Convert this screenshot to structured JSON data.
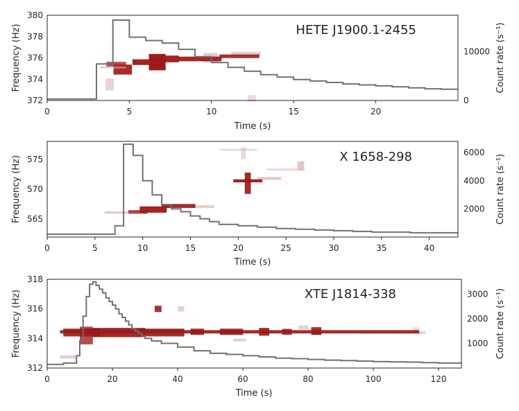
{
  "colors": {
    "power": "#a31a1a",
    "power_faint": "#dcb4b4",
    "lightcurve": "#707070",
    "frame": "#222222"
  },
  "chart_data": [
    {
      "type": "heatmap",
      "title": "HETE J1900.1-2455",
      "xlabel": "Time (s)",
      "ylabel": "Frequency (Hz)",
      "y2label": "Count rate (s⁻¹)",
      "xlim": [
        0,
        25
      ],
      "ylim": [
        372,
        380
      ],
      "y2lim": [
        0,
        17500
      ],
      "xticks": [
        "0",
        "5",
        "10",
        "15",
        "20"
      ],
      "xtick_values": [
        0,
        5,
        10,
        15,
        20
      ],
      "yticks": [
        "372",
        "374",
        "376",
        "378",
        "380"
      ],
      "ytick_values": [
        372,
        374,
        376,
        378,
        380
      ],
      "y2ticks": [
        "0",
        "10000"
      ],
      "y2tick_values": [
        0,
        10000
      ],
      "lightcurve": {
        "t": [
          0,
          3,
          4,
          5,
          6,
          7,
          8,
          9,
          10,
          11,
          12,
          13,
          14,
          15,
          16,
          17,
          18,
          19,
          20,
          21,
          22,
          23,
          24
        ],
        "rate": [
          300,
          7500,
          16500,
          13000,
          12300,
          11800,
          10500,
          9000,
          7800,
          6800,
          6000,
          5300,
          4800,
          4300,
          4000,
          3700,
          3400,
          3200,
          3000,
          2800,
          2600,
          2400,
          2300
        ]
      },
      "power_cells": [
        {
          "t": 3.2,
          "f": 375.1,
          "dt": 1.6,
          "df": 0.2,
          "power": 0.15
        },
        {
          "t": 3.6,
          "f": 375.4,
          "dt": 1.2,
          "df": 0.45,
          "power": 0.5
        },
        {
          "t": 4.05,
          "f": 374.9,
          "dt": 1.1,
          "df": 0.9,
          "power": 0.85
        },
        {
          "t": 3.55,
          "f": 373.5,
          "dt": 0.5,
          "df": 1.1,
          "power": 0.2
        },
        {
          "t": 5.2,
          "f": 375.6,
          "dt": 1.8,
          "df": 0.5,
          "power": 0.9
        },
        {
          "t": 6.2,
          "f": 375.6,
          "dt": 1.0,
          "df": 1.5,
          "power": 1.0
        },
        {
          "t": 7.0,
          "f": 375.9,
          "dt": 1.0,
          "df": 0.6,
          "power": 0.9
        },
        {
          "t": 8.0,
          "f": 375.9,
          "dt": 2.6,
          "df": 0.4,
          "power": 0.85
        },
        {
          "t": 10.5,
          "f": 376.15,
          "dt": 2.4,
          "df": 0.3,
          "power": 0.8
        },
        {
          "t": 9.5,
          "f": 376.0,
          "dt": 0.9,
          "df": 0.9,
          "power": 0.3
        },
        {
          "t": 11.2,
          "f": 376.4,
          "dt": 1.8,
          "df": 0.35,
          "power": 0.25
        },
        {
          "t": 12.2,
          "f": 372.2,
          "dt": 0.5,
          "df": 0.6,
          "power": 0.15
        }
      ]
    },
    {
      "type": "heatmap",
      "title": "X 1658-298",
      "xlabel": "Time (s)",
      "ylabel": "Frequency (Hz)",
      "y2label": "Count rate (s⁻¹)",
      "xlim": [
        0,
        43
      ],
      "ylim": [
        562,
        578
      ],
      "y2lim": [
        0,
        6800
      ],
      "xticks": [
        "0",
        "5",
        "10",
        "15",
        "20",
        "25",
        "30",
        "35",
        "40"
      ],
      "xtick_values": [
        0,
        5,
        10,
        15,
        20,
        25,
        30,
        35,
        40
      ],
      "yticks": [
        "565",
        "570",
        "575"
      ],
      "ytick_values": [
        565,
        570,
        575
      ],
      "y2ticks": [
        "2000",
        "4000",
        "6000"
      ],
      "y2tick_values": [
        2000,
        4000,
        6000
      ],
      "lightcurve": {
        "t": [
          0,
          7.1,
          8,
          9,
          10,
          11,
          12,
          13,
          14,
          15,
          16,
          17,
          18,
          20,
          22,
          24,
          26,
          28,
          30,
          32,
          34,
          36,
          38,
          40,
          42
        ],
        "rate": [
          200,
          800,
          6600,
          5800,
          4000,
          3000,
          2300,
          2000,
          1800,
          1500,
          1300,
          1100,
          900,
          800,
          700,
          600,
          550,
          500,
          450,
          400,
          350,
          350,
          300,
          300,
          300
        ]
      },
      "power_cells": [
        {
          "t": 6.0,
          "f": 566.1,
          "dt": 2.5,
          "df": 0.4,
          "power": 0.3
        },
        {
          "t": 8.5,
          "f": 566.2,
          "dt": 2.0,
          "df": 0.6,
          "power": 0.6
        },
        {
          "t": 9.7,
          "f": 566.6,
          "dt": 2.8,
          "df": 1.0,
          "power": 0.9
        },
        {
          "t": 12.0,
          "f": 567.2,
          "dt": 3.5,
          "df": 0.6,
          "power": 0.85
        },
        {
          "t": 15.0,
          "f": 567.1,
          "dt": 2.5,
          "df": 0.5,
          "power": 0.25
        },
        {
          "t": 19.5,
          "f": 571.4,
          "dt": 3.0,
          "df": 0.45,
          "power": 0.9
        },
        {
          "t": 20.7,
          "f": 571.0,
          "dt": 0.6,
          "df": 3.5,
          "power": 0.85
        },
        {
          "t": 22.0,
          "f": 571.8,
          "dt": 2.5,
          "df": 0.5,
          "power": 0.3
        },
        {
          "t": 18.0,
          "f": 576.6,
          "dt": 4.0,
          "df": 0.3,
          "power": 0.15
        },
        {
          "t": 20.3,
          "f": 576.0,
          "dt": 0.5,
          "df": 2.0,
          "power": 0.15
        },
        {
          "t": 23.0,
          "f": 573.3,
          "dt": 4.0,
          "df": 0.3,
          "power": 0.2
        },
        {
          "t": 26.2,
          "f": 573.9,
          "dt": 0.7,
          "df": 1.5,
          "power": 0.35
        }
      ]
    },
    {
      "type": "heatmap",
      "title": "XTE J1814-338",
      "xlabel": "Time (s)",
      "ylabel": "Frequency (Hz)",
      "y2label": "Count rate (s⁻¹)",
      "xlim": [
        0,
        127
      ],
      "ylim": [
        312,
        318
      ],
      "y2lim": [
        0,
        3600
      ],
      "xticks": [
        "0",
        "20",
        "40",
        "60",
        "80",
        "100",
        "120"
      ],
      "xtick_values": [
        0,
        20,
        40,
        60,
        80,
        100,
        120
      ],
      "yticks": [
        "312",
        "314",
        "316",
        "318"
      ],
      "ytick_values": [
        312,
        314,
        316,
        318
      ],
      "y2ticks": [
        "1000",
        "2000",
        "3000"
      ],
      "y2tick_values": [
        1000,
        2000,
        3000
      ],
      "lightcurve": {
        "t": [
          0,
          5,
          9,
          10,
          11,
          12,
          13,
          14,
          15,
          16,
          17,
          18,
          19,
          20,
          21,
          22,
          23,
          24,
          25,
          26,
          27,
          28,
          29,
          30,
          32,
          35,
          40,
          45,
          50,
          55,
          60,
          65,
          70,
          75,
          80,
          85,
          90,
          95,
          100,
          105,
          110,
          115,
          120,
          126
        ],
        "rate": [
          150,
          200,
          500,
          1100,
          2100,
          2900,
          3400,
          3500,
          3350,
          3200,
          3050,
          2850,
          2700,
          2550,
          2400,
          2200,
          2050,
          1900,
          1750,
          1600,
          1500,
          1400,
          1300,
          1200,
          1100,
          1000,
          850,
          700,
          600,
          550,
          500,
          450,
          400,
          380,
          350,
          320,
          300,
          280,
          260,
          250,
          240,
          220,
          200,
          200
        ]
      },
      "power_cells": [
        {
          "t": 4.0,
          "f": 314.45,
          "dt": 110.0,
          "df": 0.2,
          "power": 0.85
        },
        {
          "t": 5.0,
          "f": 314.4,
          "dt": 11.0,
          "df": 0.5,
          "power": 0.75
        },
        {
          "t": 10.0,
          "f": 314.2,
          "dt": 4.0,
          "df": 1.2,
          "power": 0.5
        },
        {
          "t": 14.0,
          "f": 314.4,
          "dt": 16.0,
          "df": 0.6,
          "power": 0.85
        },
        {
          "t": 28.0,
          "f": 314.4,
          "dt": 14.0,
          "df": 0.5,
          "power": 0.8
        },
        {
          "t": 44.0,
          "f": 314.45,
          "dt": 4.0,
          "df": 0.4,
          "power": 0.75
        },
        {
          "t": 53.0,
          "f": 314.45,
          "dt": 7.0,
          "df": 0.4,
          "power": 0.75
        },
        {
          "t": 65.0,
          "f": 314.45,
          "dt": 3.0,
          "df": 0.5,
          "power": 0.8
        },
        {
          "t": 72.0,
          "f": 314.45,
          "dt": 3.0,
          "df": 0.4,
          "power": 0.7
        },
        {
          "t": 81.0,
          "f": 314.5,
          "dt": 3.0,
          "df": 0.5,
          "power": 0.8
        },
        {
          "t": 96.0,
          "f": 314.4,
          "dt": 20.0,
          "df": 0.15,
          "power": 0.4
        },
        {
          "t": 33.0,
          "f": 316.0,
          "dt": 2.0,
          "df": 0.4,
          "power": 0.75
        },
        {
          "t": 40.0,
          "f": 316.0,
          "dt": 2.0,
          "df": 0.35,
          "power": 0.25
        },
        {
          "t": 57.0,
          "f": 313.9,
          "dt": 4.0,
          "df": 0.2,
          "power": 0.2
        },
        {
          "t": 4.0,
          "f": 312.75,
          "dt": 5.0,
          "df": 0.2,
          "power": 0.3
        },
        {
          "t": 77.0,
          "f": 314.75,
          "dt": 3.0,
          "df": 0.25,
          "power": 0.25
        },
        {
          "t": 112.0,
          "f": 314.6,
          "dt": 2.0,
          "df": 0.3,
          "power": 0.15
        }
      ]
    }
  ]
}
